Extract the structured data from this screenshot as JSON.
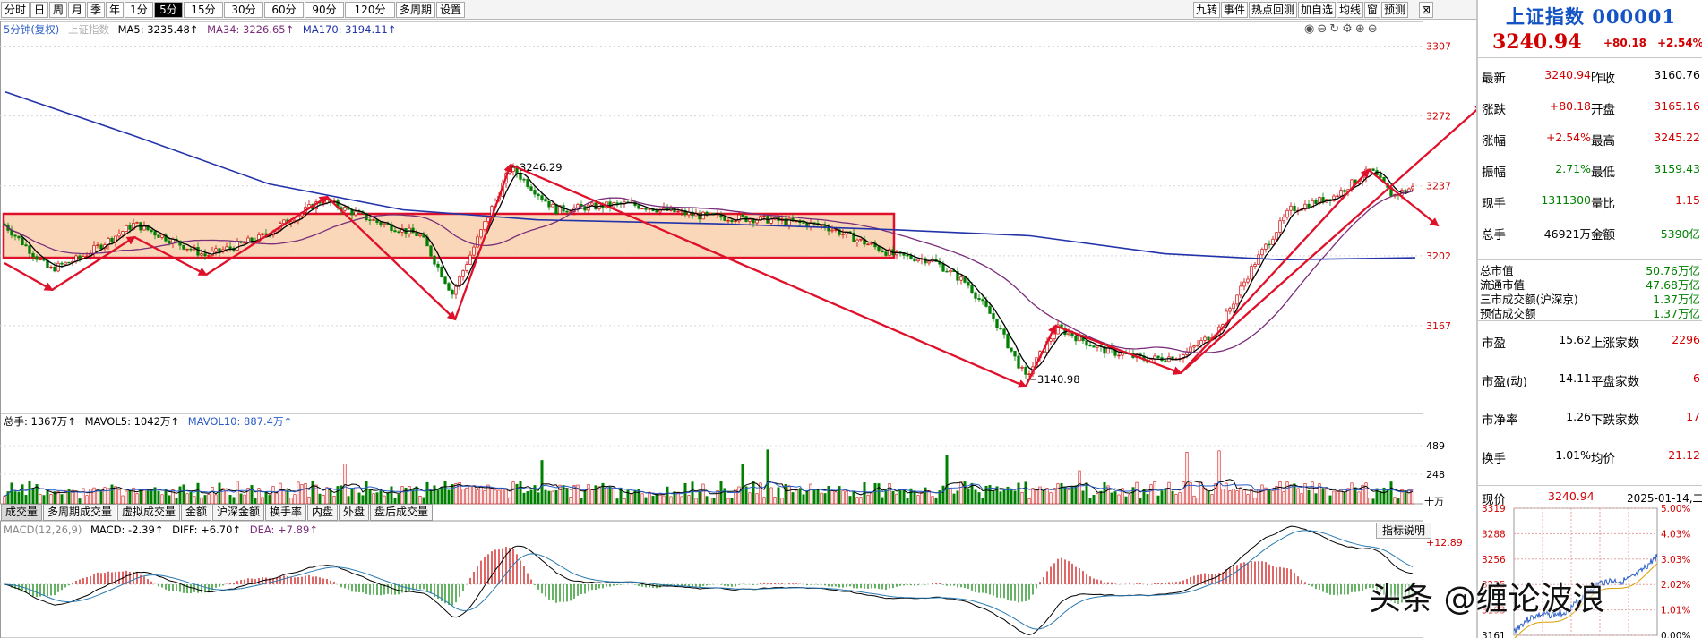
{
  "toolbar": {
    "left_buttons": [
      "分时",
      "日",
      "周",
      "月",
      "季",
      "年",
      "1分",
      "5分",
      "15分",
      "30分",
      "60分",
      "90分",
      "120分",
      "多周期",
      "设置"
    ],
    "active_left": "5分",
    "right_buttons": [
      "九转",
      "事件",
      "热点回测",
      "加自选",
      "均线",
      "窗",
      "预测"
    ]
  },
  "ma_line": {
    "label": "5分钟(复权)",
    "symbol_hint": "上证指数",
    "ma5": "MA5: 3235.48↑",
    "ma34": "MA34: 3226.65↑",
    "ma170": "MA170: 3194.11↑"
  },
  "vol_line": {
    "total": "总手: 1367万↑",
    "mavol5": "MAVOL5: 1042万↑",
    "mavol10": "MAVOL10: 887.4万↑"
  },
  "macd_line": {
    "params": "MACD(12,26,9)",
    "macd": "MACD: -2.39↑",
    "diff": "DIFF: +6.70↑",
    "dea": "DEA: +7.89↑"
  },
  "indicator_help_label": "指标说明",
  "vol_unit_label": "十万",
  "price_axis": [
    "3307",
    "3272",
    "3237",
    "3202",
    "3167"
  ],
  "vol_axis": [
    "489",
    "248"
  ],
  "macd_axis": [
    "+12.89"
  ],
  "annotations": {
    "high": "3246.29",
    "low": "3140.98"
  },
  "colors": {
    "up": "#d00000",
    "down": "#008000",
    "ma5": "#000000",
    "ma34": "#7a2e7a",
    "ma170": "#2233aa",
    "zone": "#f8c9a0",
    "arrow": "#e0102a"
  },
  "vol_tabs": [
    "成交量",
    "多周期成交量",
    "虚拟成交量",
    "金额",
    "沪深金额",
    "换手率",
    "内盘",
    "外盘",
    "盘后成交量"
  ],
  "active_vol_tab": "成交量",
  "right_panel": {
    "name": "上证指数",
    "code": "000001",
    "price": "3240.94",
    "change": "+80.18",
    "change_pct": "+2.54%",
    "quote_rows": [
      {
        "l1": "最新",
        "v1": "3240.94",
        "c1": "red",
        "l2": "昨收",
        "v2": "3160.76",
        "c2": "black"
      },
      {
        "l1": "涨跌",
        "v1": "+80.18",
        "c1": "red",
        "l2": "开盘",
        "v2": "3165.16",
        "c2": "red"
      },
      {
        "l1": "涨幅",
        "v1": "+2.54%",
        "c1": "red",
        "l2": "最高",
        "v2": "3245.22",
        "c2": "red"
      },
      {
        "l1": "振幅",
        "v1": "2.71%",
        "c1": "green",
        "l2": "最低",
        "v2": "3159.43",
        "c2": "green"
      },
      {
        "l1": "现手",
        "v1": "1311300",
        "c1": "green",
        "l2": "量比",
        "v2": "1.15",
        "c2": "red"
      },
      {
        "l1": "总手",
        "v1": "46921万",
        "c1": "black",
        "l2": "金额",
        "v2": "5390亿",
        "c2": "green"
      }
    ],
    "market_rows": [
      {
        "l": "总市值",
        "v": "50.76万亿"
      },
      {
        "l": "流通市值",
        "v": "47.68万亿"
      },
      {
        "l": "三市成交额(沪深京)",
        "v": "1.37万亿"
      },
      {
        "l": "预估成交额",
        "v": "1.37万亿"
      }
    ],
    "ratio_rows": [
      {
        "l1": "市盈",
        "v1": "15.62",
        "l2": "上涨家数",
        "v2": "2296",
        "c2": "red"
      },
      {
        "l1": "市盈(动)",
        "v1": "14.11",
        "l2": "平盘家数",
        "v2": "6",
        "c2": "red"
      },
      {
        "l1": "市净率",
        "v1": "1.26",
        "l2": "下跌家数",
        "v2": "17",
        "c2": "red"
      },
      {
        "l1": "换手",
        "v1": "1.01%",
        "l2": "均价",
        "v2": "21.12",
        "c2": "red"
      }
    ],
    "bottom": {
      "label": "现价",
      "price": "3240.94",
      "date": "2025-01-14,二"
    },
    "mini_price_axis": [
      "3319",
      "3288",
      "3256",
      "3225",
      "3193",
      "3161"
    ],
    "mini_pct_axis": [
      "5.00%",
      "4.03%",
      "3.03%",
      "2.02%",
      "1.01%",
      "0.00%"
    ]
  },
  "watermark": "头条 @缠论波浪"
}
